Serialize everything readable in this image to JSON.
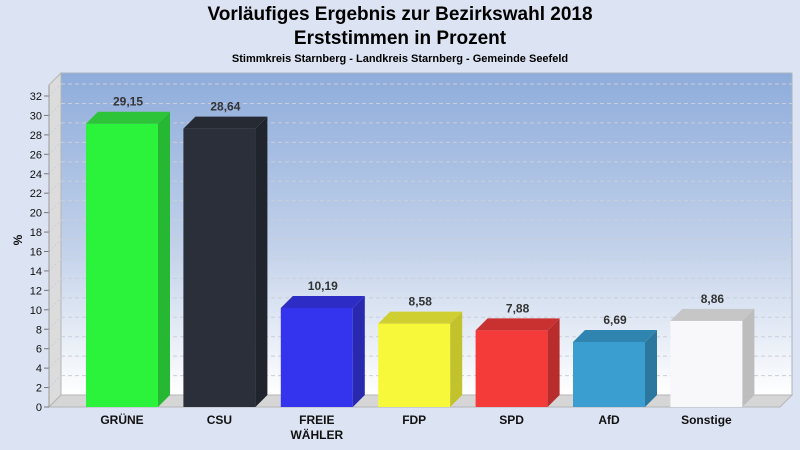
{
  "chart_data": {
    "type": "bar",
    "title": "Vorläufiges Ergebnis zur Bezirkswahl 2018",
    "subtitle": "Erststimmen in Prozent",
    "subsubtitle": "Stimmkreis Starnberg - Landkreis Starnberg - Gemeinde Seefeld",
    "xlabel": "",
    "ylabel": "%",
    "ylim": [
      0,
      32
    ],
    "yticks": [
      0,
      2,
      4,
      6,
      8,
      10,
      12,
      14,
      16,
      18,
      20,
      22,
      24,
      26,
      28,
      30,
      32
    ],
    "grid": true,
    "style": "3d",
    "categories": [
      [
        "GRÜNE"
      ],
      [
        "CSU"
      ],
      [
        "FREIE",
        "WÄHLER"
      ],
      [
        "FDP"
      ],
      [
        "SPD"
      ],
      [
        "AfD"
      ],
      [
        "Sonstige"
      ]
    ],
    "values": [
      29.15,
      28.64,
      10.19,
      8.58,
      7.88,
      6.69,
      8.86
    ],
    "value_labels": [
      "29,15",
      "28,64",
      "10,19",
      "8,58",
      "7,88",
      "6,69",
      "8,86"
    ],
    "colors": [
      "#2bf23b",
      "#2a2f3a",
      "#3434ee",
      "#f8f83a",
      "#f53a3a",
      "#3a9ed0",
      "#f8f8fa"
    ],
    "side_colors": [
      "#27b833",
      "#20242d",
      "#2929b0",
      "#c2c22c",
      "#b82c2c",
      "#2c77a0",
      "#bdbdbd"
    ],
    "top_colors": [
      "#2ec43a",
      "#262a33",
      "#2d2dc6",
      "#cfcf31",
      "#c93131",
      "#2f85b0",
      "#c6c6c6"
    ]
  }
}
